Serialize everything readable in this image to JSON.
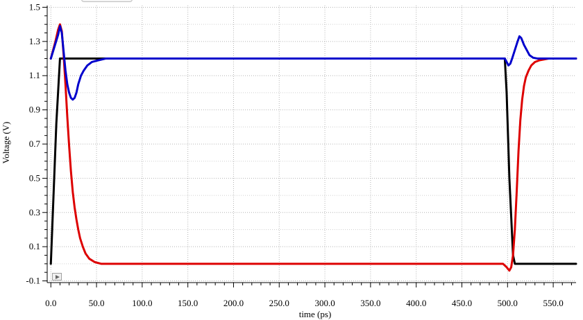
{
  "chart_data": {
    "type": "line",
    "title": "",
    "xlabel": "time (ps)",
    "ylabel": "Voltage (V)",
    "xlim": [
      -4,
      575
    ],
    "ylim": [
      -0.11,
      1.51
    ],
    "xticks": [
      0,
      50,
      100,
      150,
      200,
      250,
      300,
      350,
      400,
      450,
      500,
      550
    ],
    "xtick_labels": [
      "0.0",
      "50.0",
      "100.0",
      "150.0",
      "200.0",
      "250.0",
      "300.0",
      "350.0",
      "400.0",
      "450.0",
      "500.0",
      "550.0"
    ],
    "yticks": [
      -0.1,
      0.1,
      0.3,
      0.5,
      0.7,
      0.9,
      1.1,
      1.3,
      1.5
    ],
    "ytick_labels": [
      "-0.1",
      "0.1",
      "0.3",
      "0.5",
      "0.7",
      "0.9",
      "1.1",
      "1.3",
      "1.5"
    ],
    "grid": true,
    "series": [
      {
        "color": "#000000",
        "points": [
          [
            0,
            0.0
          ],
          [
            6,
            0.82
          ],
          [
            10,
            1.2
          ],
          [
            497,
            1.2
          ],
          [
            499,
            1.0
          ],
          [
            502,
            0.5
          ],
          [
            506,
            0.05
          ],
          [
            508,
            0.0
          ],
          [
            575,
            0.0
          ]
        ]
      },
      {
        "color": "#dd0000",
        "points": [
          [
            0,
            1.2
          ],
          [
            5,
            1.3
          ],
          [
            8,
            1.37
          ],
          [
            10,
            1.4
          ],
          [
            12,
            1.36
          ],
          [
            14,
            1.22
          ],
          [
            16,
            1.05
          ],
          [
            18,
            0.86
          ],
          [
            20,
            0.69
          ],
          [
            22,
            0.54
          ],
          [
            24,
            0.42
          ],
          [
            26,
            0.33
          ],
          [
            28,
            0.26
          ],
          [
            30,
            0.2
          ],
          [
            32,
            0.15
          ],
          [
            35,
            0.1
          ],
          [
            38,
            0.06
          ],
          [
            42,
            0.03
          ],
          [
            48,
            0.01
          ],
          [
            55,
            0.0
          ],
          [
            60,
            0.0
          ],
          [
            485,
            0.0
          ],
          [
            495,
            0.0
          ],
          [
            499,
            -0.02
          ],
          [
            502,
            -0.04
          ],
          [
            504,
            -0.02
          ],
          [
            506,
            0.05
          ],
          [
            508,
            0.2
          ],
          [
            510,
            0.42
          ],
          [
            512,
            0.66
          ],
          [
            514,
            0.84
          ],
          [
            516,
            0.96
          ],
          [
            518,
            1.04
          ],
          [
            520,
            1.09
          ],
          [
            523,
            1.13
          ],
          [
            526,
            1.16
          ],
          [
            530,
            1.18
          ],
          [
            535,
            1.19
          ],
          [
            545,
            1.2
          ],
          [
            575,
            1.2
          ]
        ]
      },
      {
        "color": "#0000cc",
        "points": [
          [
            0,
            1.2
          ],
          [
            4,
            1.27
          ],
          [
            8,
            1.34
          ],
          [
            10,
            1.39
          ],
          [
            12,
            1.35
          ],
          [
            14,
            1.24
          ],
          [
            16,
            1.13
          ],
          [
            18,
            1.05
          ],
          [
            20,
            1.0
          ],
          [
            22,
            0.97
          ],
          [
            24,
            0.96
          ],
          [
            26,
            0.97
          ],
          [
            28,
            1.0
          ],
          [
            30,
            1.05
          ],
          [
            33,
            1.1
          ],
          [
            36,
            1.13
          ],
          [
            40,
            1.16
          ],
          [
            45,
            1.18
          ],
          [
            52,
            1.19
          ],
          [
            60,
            1.2
          ],
          [
            80,
            1.2
          ],
          [
            497,
            1.2
          ],
          [
            499,
            1.18
          ],
          [
            501,
            1.16
          ],
          [
            503,
            1.17
          ],
          [
            505,
            1.2
          ],
          [
            508,
            1.25
          ],
          [
            511,
            1.3
          ],
          [
            513,
            1.33
          ],
          [
            515,
            1.32
          ],
          [
            518,
            1.28
          ],
          [
            521,
            1.25
          ],
          [
            524,
            1.22
          ],
          [
            528,
            1.205
          ],
          [
            533,
            1.2
          ],
          [
            575,
            1.2
          ]
        ]
      }
    ]
  }
}
